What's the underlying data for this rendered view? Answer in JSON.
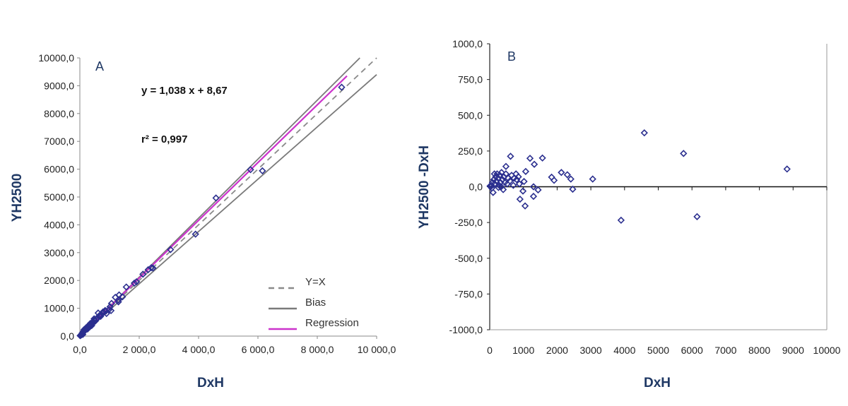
{
  "chart_data": [
    {
      "type": "scatter",
      "panel_label": "A",
      "xlabel": "DxH",
      "ylabel": "YH2500",
      "xlim": [
        0,
        10000
      ],
      "ylim": [
        0,
        10000
      ],
      "x_tick_labels": [
        "0,0",
        "2 000,0",
        "4 000,0",
        "6 000,0",
        "8 000,0",
        "10 000,0"
      ],
      "x_ticks": [
        0,
        2000,
        4000,
        6000,
        8000,
        10000
      ],
      "y_tick_labels": [
        "0,0",
        "1000,0",
        "2000,0",
        "3000,0",
        "4000,0",
        "5000,0",
        "6000,0",
        "7000,0",
        "8000,0",
        "9000,0",
        "10000,0"
      ],
      "y_ticks": [
        0,
        1000,
        2000,
        3000,
        4000,
        5000,
        6000,
        7000,
        8000,
        9000,
        10000
      ],
      "grid": false,
      "legend_position": "bottom-right",
      "equation": "y = 1,038 x + 8,67",
      "r_squared": "r² = 0,997",
      "lines": [
        {
          "name": "Y=X",
          "slope": 1.0,
          "intercept": 0,
          "x_range": [
            0,
            10000
          ],
          "color": "#8a8a8a",
          "style": "dashed"
        },
        {
          "name": "Bias",
          "slope": 1.06,
          "intercept": 0,
          "x_range": [
            0,
            10000
          ],
          "color": "#7a7a7a",
          "style": "solid"
        },
        {
          "name": "Bias",
          "slope": 0.94,
          "intercept": 0,
          "x_range": [
            0,
            10000
          ],
          "color": "#7a7a7a",
          "style": "solid",
          "legend": false
        },
        {
          "name": "Regression",
          "slope": 1.038,
          "intercept": 8.67,
          "x_range": [
            0,
            9000
          ],
          "color": "#cc33cc",
          "style": "solid"
        }
      ],
      "marker_color": "#2b2f8f",
      "points_x": [
        4587,
        5750,
        8821,
        3897,
        6151,
        3055,
        2462,
        2406,
        2302,
        2125,
        1909,
        1836,
        1564,
        1323,
        1195,
        1435,
        1299,
        1299,
        1050,
        1067,
        986,
        898,
        617,
        481,
        1018,
        50,
        80,
        100,
        120,
        150,
        180,
        200,
        220,
        250,
        280,
        300,
        320,
        350,
        380,
        400,
        420,
        450,
        480,
        520,
        550,
        600,
        650,
        700,
        720,
        780,
        800,
        850,
        880,
        30,
        60,
        10,
        140,
        260,
        340
      ],
      "points_y": [
        4964,
        5983,
        8945,
        3663,
        5942,
        3109,
        2445,
        2460,
        2386,
        2225,
        1954,
        1903,
        1765,
        1480,
        1394,
        1413,
        1232,
        1299,
        916,
        1174,
        956,
        811,
        830,
        623,
        1055,
        60,
        110,
        60,
        170,
        170,
        250,
        240,
        310,
        310,
        290,
        380,
        350,
        450,
        430,
        380,
        490,
        480,
        570,
        540,
        610,
        640,
        730,
        710,
        780,
        870,
        850,
        920,
        900,
        30,
        50,
        15,
        230,
        255,
        340
      ]
    },
    {
      "type": "scatter",
      "panel_label": "B",
      "xlabel": "DxH",
      "ylabel": "YH2500 -DxH",
      "xlim": [
        0,
        10000
      ],
      "ylim": [
        -1000,
        1000
      ],
      "x_tick_labels": [
        "0",
        "1000",
        "2000",
        "3000",
        "4000",
        "5000",
        "6000",
        "7000",
        "8000",
        "9000",
        "10000"
      ],
      "x_ticks": [
        0,
        1000,
        2000,
        3000,
        4000,
        5000,
        6000,
        7000,
        8000,
        9000,
        10000
      ],
      "y_tick_labels": [
        "-1000,0",
        "-750,0",
        "-500,0",
        "-250,0",
        "0,0",
        "250,0",
        "500,0",
        "750,0",
        "1000,0"
      ],
      "y_ticks": [
        -1000,
        -750,
        -500,
        -250,
        0,
        250,
        500,
        750,
        1000
      ],
      "grid": false,
      "reference_line_y": 0,
      "marker_color": "#2b2f8f",
      "points_x": [
        4587,
        5750,
        8821,
        3897,
        6151,
        3055,
        2462,
        2406,
        2302,
        2125,
        1909,
        1836,
        1564,
        1323,
        1195,
        1435,
        1299,
        1299,
        1050,
        1067,
        986,
        898,
        617,
        481,
        1018,
        50,
        80,
        100,
        120,
        150,
        180,
        200,
        220,
        250,
        280,
        300,
        320,
        350,
        380,
        400,
        420,
        450,
        480,
        520,
        550,
        600,
        650,
        700,
        720,
        780,
        800,
        850,
        880,
        30,
        60,
        10,
        140,
        260,
        340
      ],
      "points_y": [
        377,
        233,
        124,
        -234,
        -209,
        54,
        -17,
        54,
        84,
        100,
        45,
        67,
        201,
        157,
        199,
        -22,
        -67,
        0,
        -134,
        107,
        -30,
        -87,
        213,
        142,
        37,
        10,
        30,
        -40,
        50,
        20,
        70,
        40,
        90,
        60,
        10,
        80,
        30,
        100,
        50,
        -20,
        70,
        30,
        90,
        20,
        60,
        40,
        80,
        10,
        60,
        90,
        50,
        70,
        20,
        0,
        -10,
        5,
        90,
        -5,
        0
      ]
    }
  ]
}
